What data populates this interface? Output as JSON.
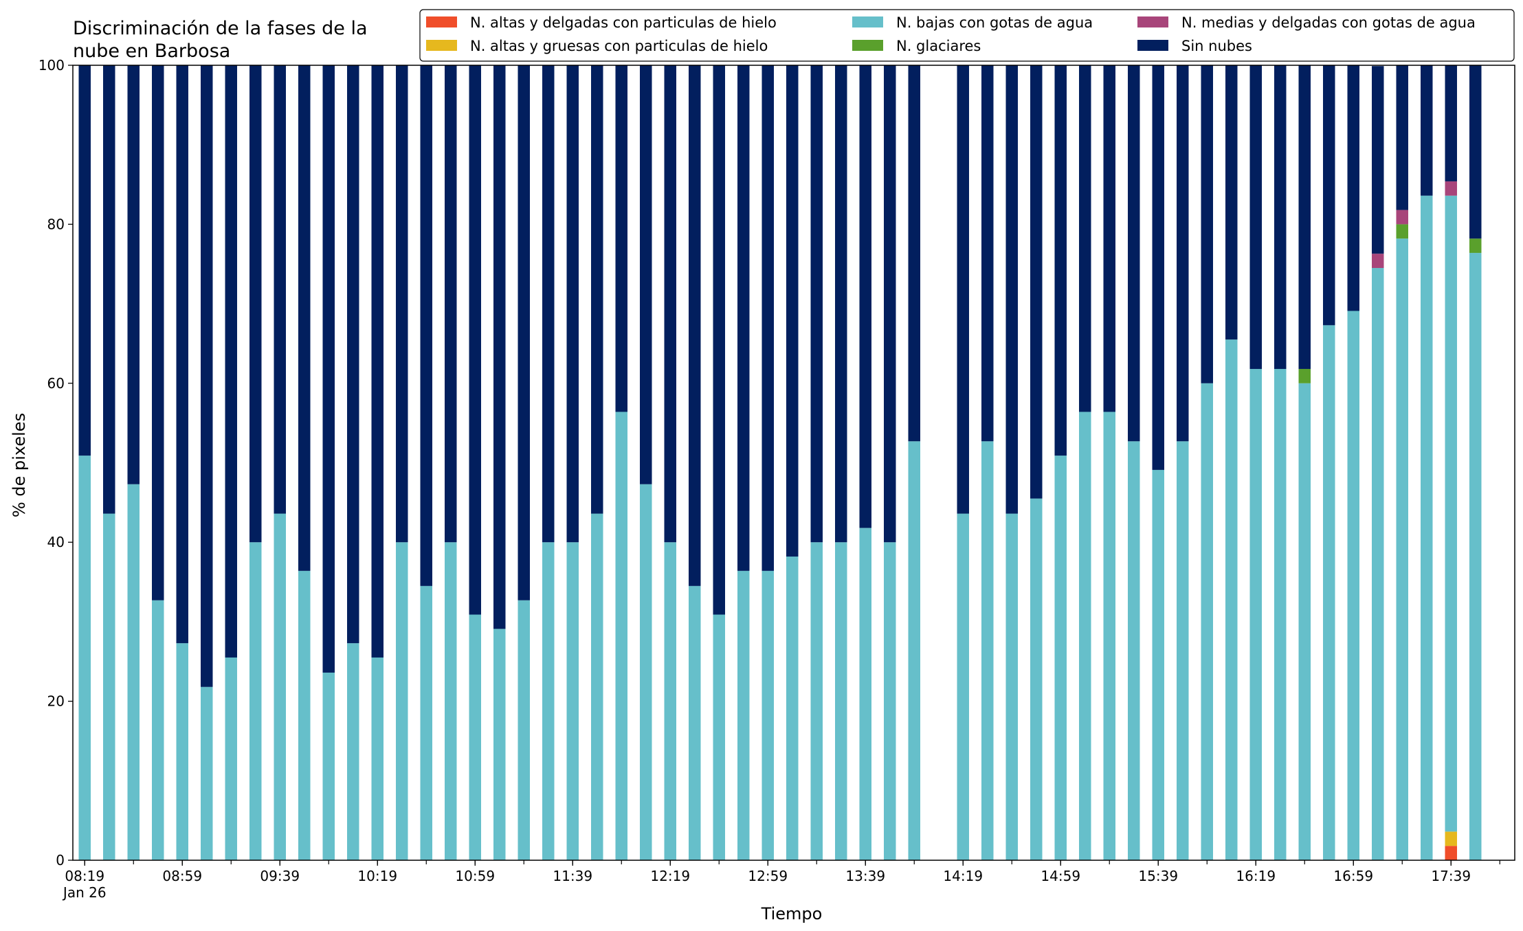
{
  "chart_data": {
    "type": "bar",
    "stacked": true,
    "title_lines": [
      "Discriminación de la fases de la",
      "nube en Barbosa"
    ],
    "xlabel": "Tiempo",
    "ylabel": "% de pixeles",
    "ylim": [
      0,
      100
    ],
    "yticks": [
      0,
      20,
      40,
      60,
      80,
      100
    ],
    "grid": false,
    "legend_position": "top-right",
    "x_start": "08:19",
    "x_step_minutes": 10,
    "x_tick_labels": [
      "08:19",
      "08:59",
      "09:39",
      "10:19",
      "10:59",
      "11:39",
      "12:19",
      "12:59",
      "13:39",
      "14:19",
      "14:59",
      "15:39",
      "16:19",
      "16:59",
      "17:39"
    ],
    "x_tick_sublabel": "Jan 26",
    "x_times": [
      "08:19",
      "08:29",
      "08:39",
      "08:49",
      "08:59",
      "09:09",
      "09:19",
      "09:29",
      "09:39",
      "09:49",
      "09:59",
      "10:09",
      "10:19",
      "10:29",
      "10:39",
      "10:49",
      "10:59",
      "11:09",
      "11:19",
      "11:29",
      "11:39",
      "11:49",
      "11:59",
      "12:09",
      "12:19",
      "12:29",
      "12:39",
      "12:49",
      "12:59",
      "13:09",
      "13:19",
      "13:29",
      "13:39",
      "13:49",
      "13:59",
      "14:09",
      "14:19",
      "14:29",
      "14:39",
      "14:49",
      "14:59",
      "15:09",
      "15:19",
      "15:29",
      "15:39",
      "15:49",
      "15:59",
      "16:09",
      "16:19",
      "16:29",
      "16:39",
      "16:49",
      "16:59",
      "17:09",
      "17:19",
      "17:29",
      "17:39",
      "17:49"
    ],
    "series": [
      {
        "name": "N. altas y delgadas con particulas de hielo",
        "color": "#f04e2a",
        "values": [
          0,
          0,
          0,
          0,
          0,
          0,
          0,
          0,
          0,
          0,
          0,
          0,
          0,
          0,
          0,
          0,
          0,
          0,
          0,
          0,
          0,
          0,
          0,
          0,
          0,
          0,
          0,
          0,
          0,
          0,
          0,
          0,
          0,
          0,
          0,
          0,
          0,
          0,
          0,
          0,
          0,
          0,
          0,
          0,
          0,
          0,
          0,
          0,
          0,
          0,
          0,
          0,
          0,
          0,
          0,
          0,
          1.8,
          0
        ]
      },
      {
        "name": "N. altas y gruesas con particulas de hielo",
        "color": "#e6b81e",
        "values": [
          0,
          0,
          0,
          0,
          0,
          0,
          0,
          0,
          0,
          0,
          0,
          0,
          0,
          0,
          0,
          0,
          0,
          0,
          0,
          0,
          0,
          0,
          0,
          0,
          0,
          0,
          0,
          0,
          0,
          0,
          0,
          0,
          0,
          0,
          0,
          0,
          0,
          0,
          0,
          0,
          0,
          0,
          0,
          0,
          0,
          0,
          0,
          0,
          0,
          0,
          0,
          0,
          0,
          0,
          0,
          0,
          1.8,
          0
        ]
      },
      {
        "name": "N. bajas con gotas de agua",
        "color": "#66bfca",
        "values": [
          50.9,
          43.6,
          47.3,
          32.7,
          27.3,
          21.8,
          25.5,
          40.0,
          43.6,
          36.4,
          23.6,
          27.3,
          25.5,
          40.0,
          34.5,
          40.0,
          30.9,
          29.1,
          32.7,
          40.0,
          40.0,
          43.6,
          56.4,
          47.3,
          40.0,
          34.5,
          30.9,
          36.4,
          36.4,
          38.2,
          40.0,
          40.0,
          41.8,
          40.0,
          52.7,
          0,
          43.6,
          52.7,
          43.6,
          45.5,
          50.9,
          56.4,
          56.4,
          52.7,
          49.1,
          52.7,
          60.0,
          65.5,
          61.8,
          61.8,
          60.0,
          67.3,
          69.1,
          74.5,
          78.2,
          83.6,
          80.0,
          76.4
        ]
      },
      {
        "name": "N. glaciares",
        "color": "#5aa02c",
        "values": [
          0,
          0,
          0,
          0,
          0,
          0,
          0,
          0,
          0,
          0,
          0,
          0,
          0,
          0,
          0,
          0,
          0,
          0,
          0,
          0,
          0,
          0,
          0,
          0,
          0,
          0,
          0,
          0,
          0,
          0,
          0,
          0,
          0,
          0,
          0,
          0,
          0,
          0,
          0,
          0,
          0,
          0,
          0,
          0,
          0,
          0,
          0,
          0,
          0,
          0,
          1.8,
          0,
          0,
          0,
          1.8,
          0,
          0,
          1.8
        ]
      },
      {
        "name": "N. medias y delgadas con gotas de agua",
        "color": "#a8457a",
        "values": [
          0,
          0,
          0,
          0,
          0,
          0,
          0,
          0,
          0,
          0,
          0,
          0,
          0,
          0,
          0,
          0,
          0,
          0,
          0,
          0,
          0,
          0,
          0,
          0,
          0,
          0,
          0,
          0,
          0,
          0,
          0,
          0,
          0,
          0,
          0,
          0,
          0,
          0,
          0,
          0,
          0,
          0,
          0,
          0,
          0,
          0,
          0,
          0,
          0,
          0,
          0,
          0,
          0,
          1.8,
          1.8,
          0,
          1.8,
          0
        ]
      },
      {
        "name": "Sin nubes",
        "color": "#021f5e",
        "values": [
          49.1,
          56.4,
          52.7,
          67.3,
          72.7,
          78.2,
          74.5,
          60.0,
          56.4,
          63.6,
          76.4,
          72.7,
          74.5,
          60.0,
          65.5,
          60.0,
          69.1,
          70.9,
          67.3,
          60.0,
          60.0,
          56.4,
          43.6,
          52.7,
          60.0,
          65.5,
          69.1,
          63.6,
          63.6,
          61.8,
          60.0,
          60.0,
          58.2,
          60.0,
          47.3,
          0,
          56.4,
          47.3,
          56.4,
          54.5,
          49.1,
          43.6,
          43.6,
          47.3,
          50.9,
          47.3,
          40.0,
          34.5,
          38.2,
          38.2,
          38.2,
          32.7,
          30.9,
          23.6,
          18.2,
          16.4,
          14.6,
          21.8
        ]
      }
    ]
  }
}
